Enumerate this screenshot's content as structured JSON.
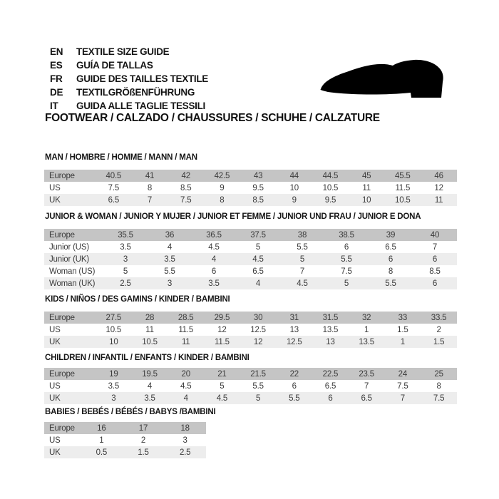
{
  "header": {
    "languages": [
      {
        "code": "EN",
        "text": "TEXTILE SIZE GUIDE"
      },
      {
        "code": "ES",
        "text": "GUÍA DE TALLAS"
      },
      {
        "code": "FR",
        "text": "GUIDE DES TAILLES TEXTILE"
      },
      {
        "code": "DE",
        "text": "TEXTILGRÖßENFÜHRUNG"
      },
      {
        "code": "IT",
        "text": "GUIDA ALLE TAGLIE TESSILI"
      }
    ],
    "shoe_icon": "dress-shoe-silhouette-icon",
    "category_title": "FOOTWEAR / CALZADO / CHAUSSURES / SCHUHE / CALZATURE"
  },
  "colors": {
    "header_row_bg": "#c5c5c5",
    "alt_row_bg": "#ededed",
    "row_bg": "#ffffff",
    "text": "#3b3b3b",
    "title_text": "#161616"
  },
  "tables": [
    {
      "id": "man",
      "title": "MAN / HOMBRE / HOMME / MANN / MAN",
      "rows": [
        {
          "label": "Europe",
          "header": true,
          "values": [
            "40.5",
            "41",
            "42",
            "42.5",
            "43",
            "44",
            "44.5",
            "45",
            "45.5",
            "46"
          ]
        },
        {
          "label": "US",
          "values": [
            "7.5",
            "8",
            "8.5",
            "9",
            "9.5",
            "10",
            "10.5",
            "11",
            "11.5",
            "12"
          ]
        },
        {
          "label": "UK",
          "values": [
            "6.5",
            "7",
            "7.5",
            "8",
            "8.5",
            "9",
            "9.5",
            "10",
            "10.5",
            "11"
          ]
        }
      ]
    },
    {
      "id": "junior-woman",
      "title": "JUNIOR & WOMAN / JUNIOR Y MUJER / JUNIOR ET FEMME / JUNIOR UND FRAU / JUNIOR E DONA",
      "rows": [
        {
          "label": "Europe",
          "header": true,
          "values": [
            "35.5",
            "36",
            "36.5",
            "37.5",
            "38",
            "38.5",
            "39",
            "40"
          ]
        },
        {
          "label": "Junior (US)",
          "values": [
            "3.5",
            "4",
            "4.5",
            "5",
            "5.5",
            "6",
            "6.5",
            "7"
          ]
        },
        {
          "label": "Junior (UK)",
          "values": [
            "3",
            "3.5",
            "4",
            "4.5",
            "5",
            "5.5",
            "6",
            "6"
          ]
        },
        {
          "label": "Woman (US)",
          "values": [
            "5",
            "5.5",
            "6",
            "6.5",
            "7",
            "7.5",
            "8",
            "8.5"
          ]
        },
        {
          "label": "Woman (UK)",
          "values": [
            "2.5",
            "3",
            "3.5",
            "4",
            "4.5",
            "5",
            "5.5",
            "6"
          ]
        }
      ]
    },
    {
      "id": "kids",
      "title": "KIDS / NIÑOS / DES GAMINS / KINDER / BAMBINI",
      "rows": [
        {
          "label": "Europe",
          "header": true,
          "values": [
            "27.5",
            "28",
            "28.5",
            "29.5",
            "30",
            "31",
            "31.5",
            "32",
            "33",
            "33.5"
          ]
        },
        {
          "label": "US",
          "values": [
            "10.5",
            "11",
            "11.5",
            "12",
            "12.5",
            "13",
            "13.5",
            "1",
            "1.5",
            "2"
          ]
        },
        {
          "label": "UK",
          "values": [
            "10",
            "10.5",
            "11",
            "11.5",
            "12",
            "12.5",
            "13",
            "13.5",
            "1",
            "1.5"
          ]
        }
      ]
    },
    {
      "id": "children",
      "title": "CHILDREN / INFANTIL / ENFANTS / KINDER / BAMBINI",
      "rows": [
        {
          "label": "Europe",
          "header": true,
          "values": [
            "19",
            "19.5",
            "20",
            "21",
            "21.5",
            "22",
            "22.5",
            "23.5",
            "24",
            "25"
          ]
        },
        {
          "label": "US",
          "values": [
            "3.5",
            "4",
            "4.5",
            "5",
            "5.5",
            "6",
            "6.5",
            "7",
            "7.5",
            "8"
          ]
        },
        {
          "label": "UK",
          "values": [
            "3",
            "3.5",
            "4",
            "4.5",
            "5",
            "5.5",
            "6",
            "6.5",
            "7",
            "7.5"
          ]
        }
      ]
    },
    {
      "id": "babies",
      "title": "BABIES / BEBÉS / BÉBÉS / BABYS /BAMBINI",
      "rows": [
        {
          "label": "Europe",
          "header": true,
          "values": [
            "16",
            "17",
            "18"
          ]
        },
        {
          "label": "US",
          "values": [
            "1",
            "2",
            "3"
          ]
        },
        {
          "label": "UK",
          "values": [
            "0.5",
            "1.5",
            "2.5"
          ]
        }
      ]
    }
  ]
}
